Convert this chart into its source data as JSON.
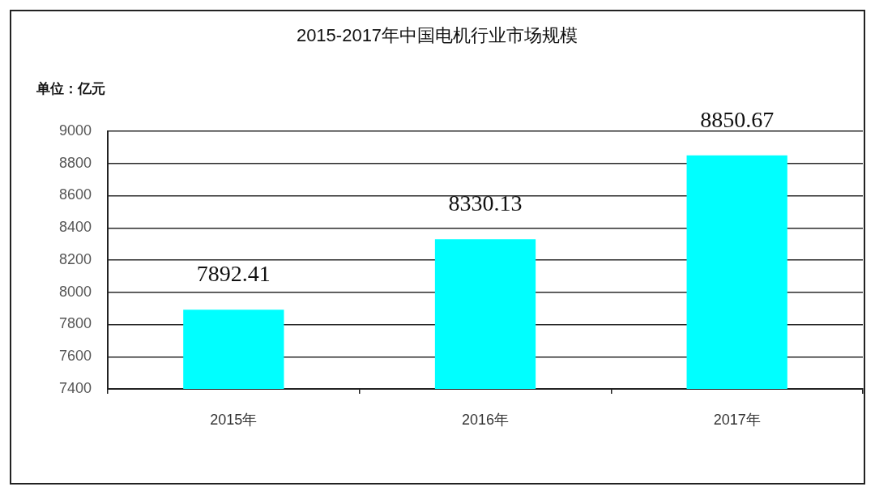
{
  "chart_data": {
    "type": "bar",
    "title": "2015-2017年中国电机行业市场规模",
    "ylabel": "单位：亿元",
    "categories": [
      "2015年",
      "2016年",
      "2017年"
    ],
    "values": [
      7892.41,
      8330.13,
      8850.67
    ],
    "color": "#00ffff",
    "ylim": [
      7400,
      9000
    ],
    "yticks": [
      7400,
      7600,
      7800,
      8000,
      8200,
      8400,
      8600,
      8800,
      9000
    ],
    "grid": "y",
    "data_labels": true,
    "legend": false
  }
}
